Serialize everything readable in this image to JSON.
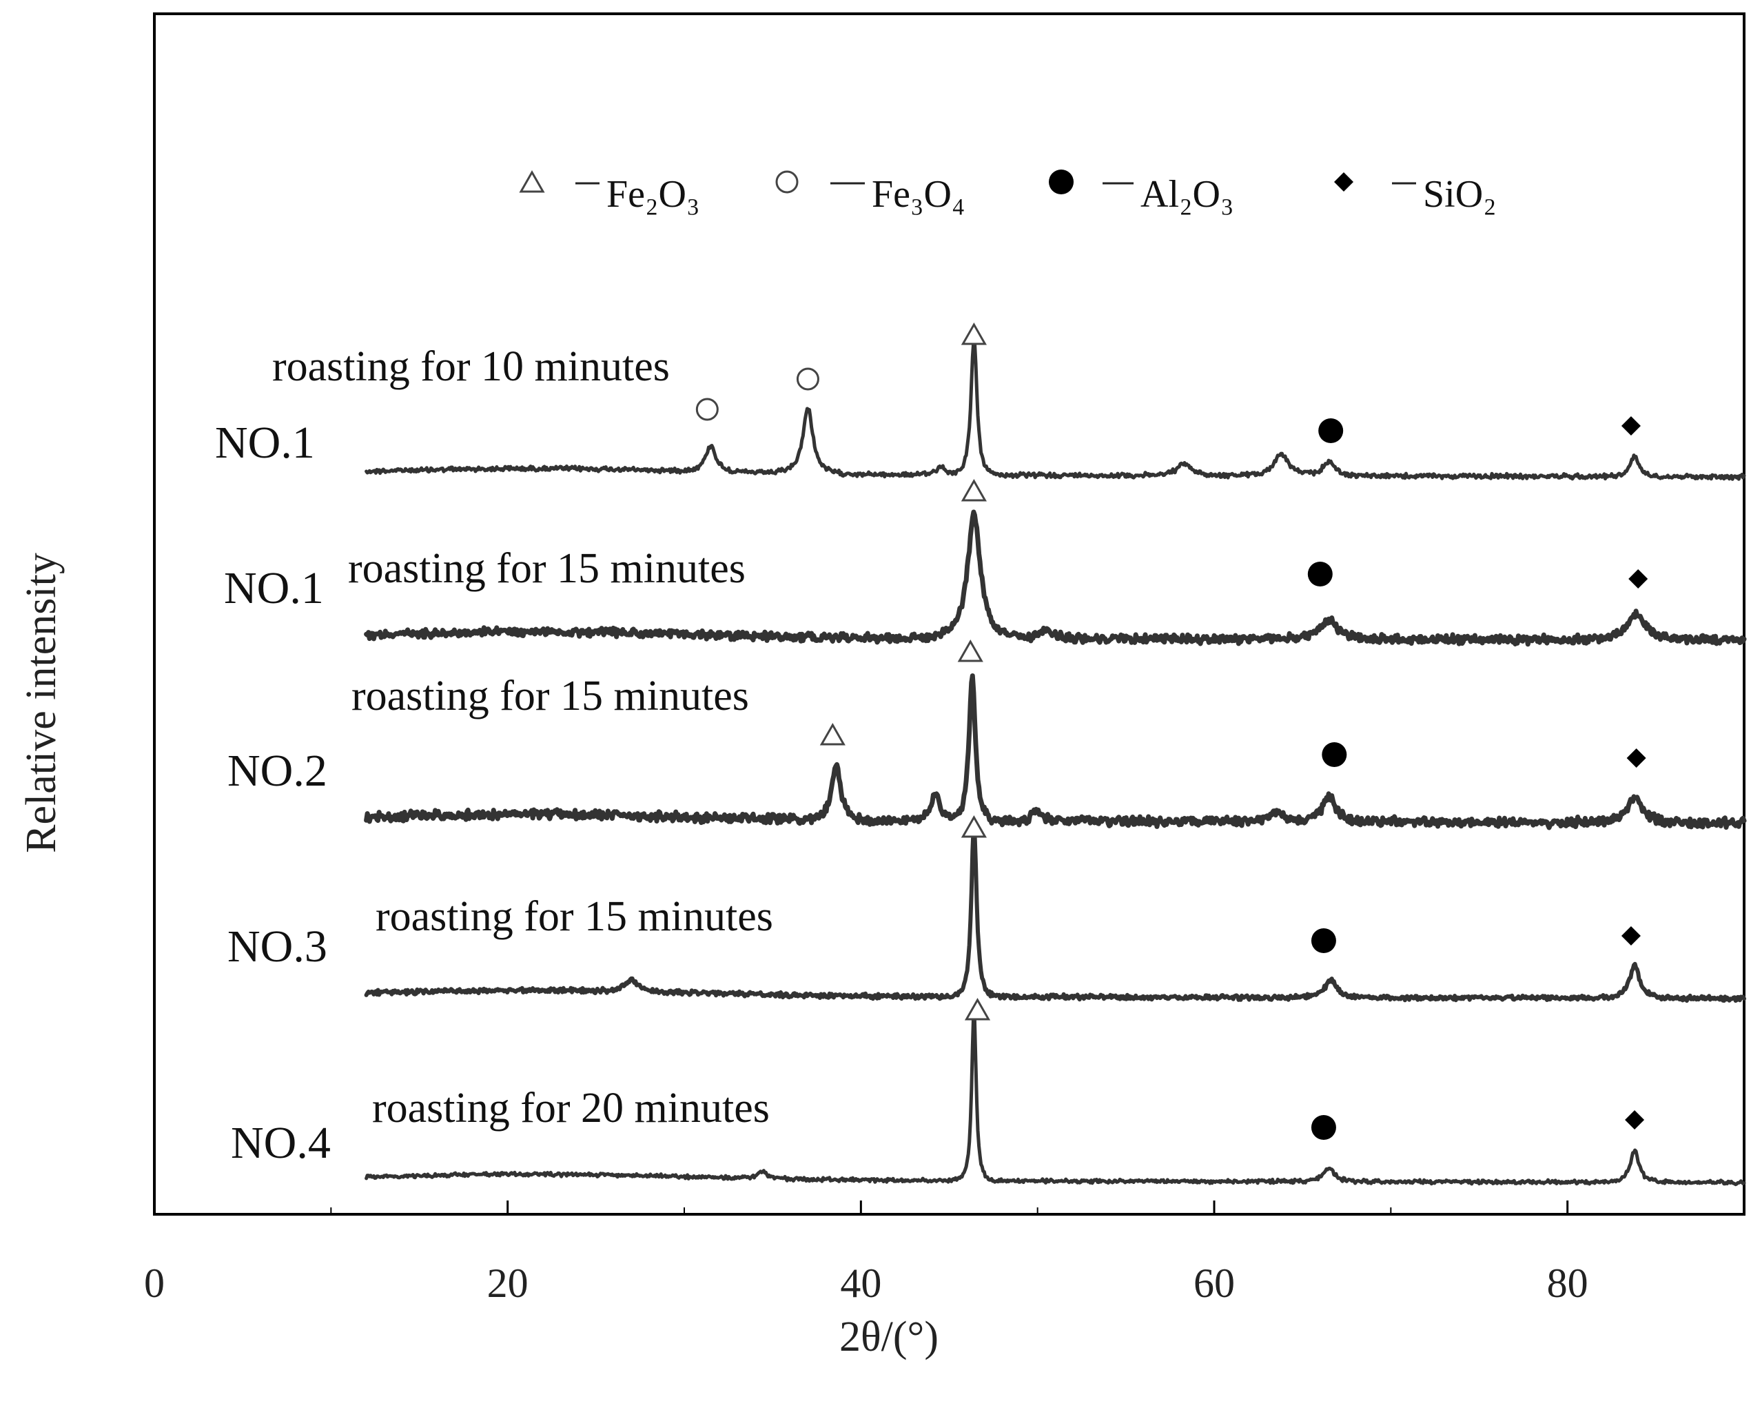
{
  "chart_data": {
    "type": "line",
    "title": "",
    "xlabel": "2θ/(°)",
    "ylabel": "Relative intensity",
    "xlim": [
      0,
      90
    ],
    "x_ticks": [
      0,
      20,
      40,
      60,
      80
    ],
    "y_ticks": [],
    "grid": false,
    "legend": {
      "position": "top-center",
      "entries": [
        {
          "marker": "open-triangle",
          "label": "Fe₂O₃"
        },
        {
          "marker": "open-circle",
          "label": "Fe₃O₄"
        },
        {
          "marker": "filled-circle",
          "label": "Al₂O₃"
        },
        {
          "marker": "filled-diamond",
          "label": "SiO₂"
        }
      ]
    },
    "x_range_measured": [
      12,
      90
    ],
    "series": [
      {
        "name": "NO.1",
        "condition": "roasting for 10 minutes",
        "line_color": "#3a3a3a",
        "peaks": [
          {
            "x": 31.5,
            "height": 0.18,
            "width": 0.35,
            "phase": "Fe₃O₄"
          },
          {
            "x": 37.0,
            "height": 0.45,
            "width": 0.35,
            "phase": "Fe₃O₄"
          },
          {
            "x": 44.5,
            "height": 0.06,
            "width": 0.3
          },
          {
            "x": 46.4,
            "height": 0.95,
            "width": 0.2,
            "phase": "Fe₂O₃"
          },
          {
            "x": 58.3,
            "height": 0.08,
            "width": 0.5
          },
          {
            "x": 63.8,
            "height": 0.15,
            "width": 0.5
          },
          {
            "x": 66.5,
            "height": 0.1,
            "width": 0.4,
            "phase": "Al₂O₃"
          },
          {
            "x": 83.8,
            "height": 0.14,
            "width": 0.3,
            "phase": "SiO₂"
          }
        ]
      },
      {
        "name": "NO.1",
        "condition": "roasting for 15 minutes",
        "line_color": "#5a5a5a",
        "peaks": [
          {
            "x": 46.4,
            "height": 0.85,
            "width": 0.45,
            "phase": "Fe₂O₃"
          },
          {
            "x": 50.6,
            "height": 0.06,
            "width": 0.4
          },
          {
            "x": 66.5,
            "height": 0.13,
            "width": 0.6,
            "phase": "Al₂O₃"
          },
          {
            "x": 83.9,
            "height": 0.18,
            "width": 0.6,
            "phase": "SiO₂"
          }
        ]
      },
      {
        "name": "NO.2",
        "condition": "roasting for 15 minutes",
        "line_color": "#4a4a4a",
        "peaks": [
          {
            "x": 38.6,
            "height": 0.38,
            "width": 0.3,
            "phase": "Fe₂O₃"
          },
          {
            "x": 44.2,
            "height": 0.18,
            "width": 0.3
          },
          {
            "x": 46.3,
            "height": 1.0,
            "width": 0.22,
            "phase": "Fe₂O₃"
          },
          {
            "x": 50.0,
            "height": 0.08,
            "width": 0.3
          },
          {
            "x": 63.6,
            "height": 0.08,
            "width": 0.4
          },
          {
            "x": 66.5,
            "height": 0.18,
            "width": 0.45,
            "phase": "Al₂O₃"
          },
          {
            "x": 83.8,
            "height": 0.18,
            "width": 0.5,
            "phase": "SiO₂"
          }
        ]
      },
      {
        "name": "NO.3",
        "condition": "roasting for 15 minutes",
        "line_color": "#262626",
        "peaks": [
          {
            "x": 27.0,
            "height": 0.08,
            "width": 0.4
          },
          {
            "x": 46.4,
            "height": 1.2,
            "width": 0.18,
            "phase": "Fe₂O₃"
          },
          {
            "x": 66.6,
            "height": 0.12,
            "width": 0.4,
            "phase": "Al₂O₃"
          },
          {
            "x": 83.8,
            "height": 0.22,
            "width": 0.35,
            "phase": "SiO₂"
          }
        ]
      },
      {
        "name": "NO.4",
        "condition": "roasting for 20 minutes",
        "line_color": "#2a2a2a",
        "peaks": [
          {
            "x": 34.4,
            "height": 0.05,
            "width": 0.3
          },
          {
            "x": 46.4,
            "height": 1.2,
            "width": 0.15,
            "phase": "Fe₂O₃"
          },
          {
            "x": 66.5,
            "height": 0.1,
            "width": 0.35,
            "phase": "Al₂O₃"
          },
          {
            "x": 83.8,
            "height": 0.22,
            "width": 0.3,
            "phase": "SiO₂"
          }
        ]
      }
    ],
    "annotations": [
      {
        "series": 0,
        "x": 31.3,
        "marker": "open-circle"
      },
      {
        "series": 0,
        "x": 37.0,
        "marker": "open-circle"
      },
      {
        "series": 0,
        "x": 46.4,
        "marker": "open-triangle"
      },
      {
        "series": 0,
        "x": 66.6,
        "marker": "filled-circle"
      },
      {
        "series": 0,
        "x": 83.6,
        "marker": "filled-diamond"
      },
      {
        "series": 1,
        "x": 46.4,
        "marker": "open-triangle"
      },
      {
        "series": 1,
        "x": 66.0,
        "marker": "filled-circle"
      },
      {
        "series": 1,
        "x": 84.0,
        "marker": "filled-diamond"
      },
      {
        "series": 2,
        "x": 38.4,
        "marker": "open-triangle"
      },
      {
        "series": 2,
        "x": 46.2,
        "marker": "open-triangle"
      },
      {
        "series": 2,
        "x": 66.8,
        "marker": "filled-circle"
      },
      {
        "series": 2,
        "x": 83.9,
        "marker": "filled-diamond"
      },
      {
        "series": 3,
        "x": 46.4,
        "marker": "open-triangle"
      },
      {
        "series": 3,
        "x": 66.2,
        "marker": "filled-circle"
      },
      {
        "series": 3,
        "x": 83.6,
        "marker": "filled-diamond"
      },
      {
        "series": 4,
        "x": 46.6,
        "marker": "open-triangle"
      },
      {
        "series": 4,
        "x": 66.2,
        "marker": "filled-circle"
      },
      {
        "series": 4,
        "x": 83.8,
        "marker": "filled-diamond"
      }
    ]
  }
}
